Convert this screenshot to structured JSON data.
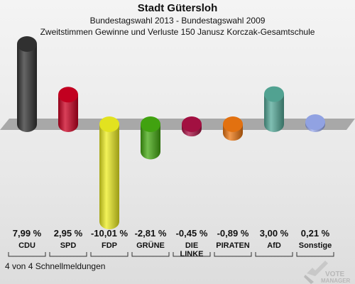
{
  "header": {
    "title": "Stadt Gütersloh",
    "subtitle": "Bundestagswahl 2013 - Bundestagswahl 2009",
    "subtitle2": "Zweitstimmen Gewinne und Verluste 150 Janusz Korczak-Gesamtschule"
  },
  "footer": {
    "text": "4 von 4 Schnellmeldungen"
  },
  "logo": {
    "text": "VOTE MANAGER"
  },
  "chart_data": {
    "type": "bar",
    "title": "Stadt Gütersloh",
    "subtitle": "Bundestagswahl 2013 - Bundestagswahl 2009",
    "categories": [
      "CDU",
      "SPD",
      "FDP",
      "GRÜNE",
      "DIE LINKE",
      "PIRATEN",
      "AfD",
      "Sonstige"
    ],
    "values": [
      7.99,
      2.95,
      -10.01,
      -2.81,
      -0.45,
      -0.89,
      3.0,
      0.21
    ],
    "value_labels": [
      "7,99 %",
      "2,95 %",
      "-10,01 %",
      "-2,81 %",
      "-0,45 %",
      "-0,89 %",
      "3,00 %",
      "0,21 %"
    ],
    "colors": [
      "#333333",
      "#cc0022",
      "#eeee22",
      "#44aa11",
      "#aa1144",
      "#ee7711",
      "#55aa99",
      "#99aaee"
    ],
    "ylim": [
      -10.01,
      7.99
    ],
    "grid": false,
    "legend": "none"
  }
}
